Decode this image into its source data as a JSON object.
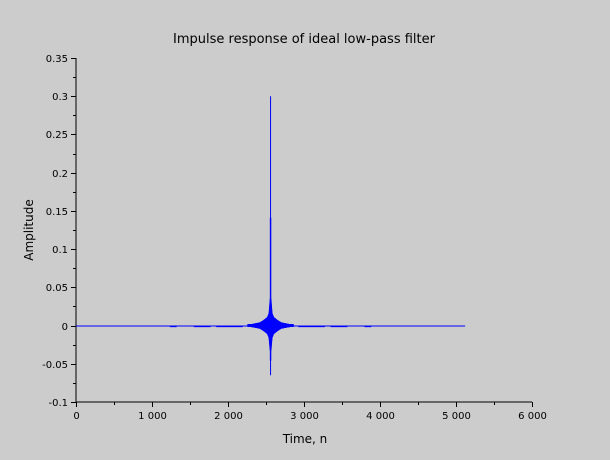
{
  "chart_data": {
    "type": "line",
    "title": "Impulse response of ideal low-pass filter",
    "xlabel": "Time, n",
    "ylabel": "Amplitude",
    "xlim": [
      0,
      6000
    ],
    "ylim": [
      -0.1,
      0.35
    ],
    "x_ticks": [
      0,
      1000,
      2000,
      3000,
      4000,
      5000,
      6000
    ],
    "x_tick_labels": [
      "0",
      "1 000",
      "2 000",
      "3 000",
      "4 000",
      "5 000",
      "6 000"
    ],
    "y_ticks": [
      -0.1,
      -0.05,
      0,
      0.05,
      0.1,
      0.15,
      0.2,
      0.25,
      0.3,
      0.35
    ],
    "y_tick_labels": [
      "-0.1",
      "-0.05",
      "0",
      "0.05",
      "0.1",
      "0.15",
      "0.2",
      "0.25",
      "0.3",
      "0.35"
    ],
    "grid": false,
    "series": [
      {
        "color": "#0000ff",
        "x_range": [
          0,
          5120
        ],
        "peak": {
          "x": 2560,
          "y": 0.3
        },
        "min": {
          "x": 2560,
          "y": -0.065
        },
        "envelope": [
          {
            "x": 2560,
            "max": 0.3,
            "min": -0.065
          },
          {
            "x": 2565,
            "max": 0.035,
            "min": -0.033
          },
          {
            "x": 2580,
            "max": 0.016,
            "min": -0.016
          },
          {
            "x": 2600,
            "max": 0.011,
            "min": -0.011
          },
          {
            "x": 2650,
            "max": 0.007,
            "min": -0.007
          },
          {
            "x": 2700,
            "max": 0.004,
            "min": -0.004
          },
          {
            "x": 2800,
            "max": 0.002,
            "min": -0.002
          },
          {
            "x": 3000,
            "max": 0.001,
            "min": -0.001
          },
          {
            "x": 5120,
            "max": 0.0003,
            "min": -0.0003
          }
        ],
        "bumps": [
          {
            "x": 1280,
            "width": 90,
            "y": -0.0015
          },
          {
            "x": 1660,
            "width": 220,
            "y": -0.0015
          },
          {
            "x": 2020,
            "width": 350,
            "y": -0.001
          },
          {
            "x": 3100,
            "width": 350,
            "y": -0.001
          },
          {
            "x": 3460,
            "width": 220,
            "y": -0.0015
          },
          {
            "x": 3840,
            "width": 90,
            "y": -0.0015
          }
        ]
      }
    ]
  }
}
